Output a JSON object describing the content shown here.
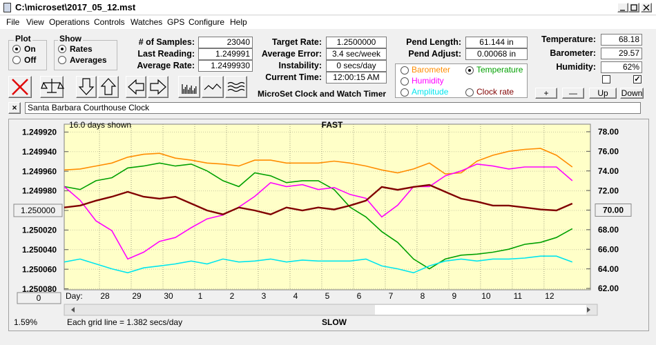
{
  "window": {
    "title": "C:\\microset\\2017_05_12.mst"
  },
  "menu": [
    "File",
    "View",
    "Operations",
    "Controls",
    "Watches",
    "GPS",
    "Configure",
    "Help"
  ],
  "plot_group": {
    "title": "Plot",
    "options": [
      "On",
      "Off"
    ],
    "selected": 0
  },
  "show_group": {
    "title": "Show",
    "options": [
      "Rates",
      "Averages"
    ],
    "selected": 0
  },
  "readouts": [
    [
      {
        "label": "# of Samples:",
        "value": "23040"
      },
      {
        "label": "Last Reading:",
        "value": "1.249991"
      },
      {
        "label": "Average Rate:",
        "value": "1.2499930"
      }
    ],
    [
      {
        "label": "Target Rate:",
        "value": "1.2500000"
      },
      {
        "label": "Average Error:",
        "value": "3.4 sec/week"
      },
      {
        "label": "Instability:",
        "value": "0 secs/day"
      },
      {
        "label": "Current Time:",
        "value": "12:00:15 AM"
      }
    ],
    [
      {
        "label": "Pend Length:",
        "value": "61.144 in"
      },
      {
        "label": "Pend Adjust:",
        "value": "0.00068 in"
      }
    ],
    [
      {
        "label": "Temperature:",
        "value": "68.18"
      },
      {
        "label": "Barometer:",
        "value": "29.57"
      },
      {
        "label": "Humidity:",
        "value": "62%"
      }
    ]
  ],
  "app_caption": "MicroSet Clock and Watch Timer",
  "buttons": [
    "+",
    "—",
    "Up",
    "Down"
  ],
  "checkboxes": [
    false,
    true
  ],
  "clock_name": "Santa Barbara Courthouse Clock",
  "chart_data": {
    "type": "line",
    "days_shown": "16.0 days shown",
    "top_label": "FAST",
    "bottom_label": "SLOW",
    "grid_note": "Each grid line = 1.382 secs/day",
    "x_axis_label": "Day:",
    "scroll_value": "0",
    "percent": "1.59%",
    "selected_series": 1,
    "button_ticks": {
      "y": 4,
      "y2": 4
    },
    "x": [
      0,
      0.5,
      1,
      1.5,
      2,
      2.5,
      3,
      3.5,
      4,
      4.5,
      5,
      5.5,
      6,
      6.5,
      7,
      7.5,
      8,
      8.5,
      9,
      9.5,
      10,
      10.5,
      11,
      11.5,
      12,
      12.5,
      13,
      13.5,
      14,
      14.5,
      15,
      15.5,
      16
    ],
    "xlim": [
      0,
      16.57
    ],
    "xticks": [
      {
        "value": 1.11,
        "label": "28"
      },
      {
        "value": 2.11,
        "label": "29"
      },
      {
        "value": 3.11,
        "label": "30"
      },
      {
        "value": 4.11,
        "label": "1"
      },
      {
        "value": 5.11,
        "label": "2"
      },
      {
        "value": 6.11,
        "label": "3"
      },
      {
        "value": 7.11,
        "label": "4"
      },
      {
        "value": 8.11,
        "label": "5"
      },
      {
        "value": 9.11,
        "label": "6"
      },
      {
        "value": 10.11,
        "label": "7"
      },
      {
        "value": 11.11,
        "label": "8"
      },
      {
        "value": 12.11,
        "label": "9"
      },
      {
        "value": 13.11,
        "label": "10"
      },
      {
        "value": 14.11,
        "label": "11"
      },
      {
        "value": 15.11,
        "label": "12"
      }
    ],
    "ylim": [
      1.250081,
      1.249912
    ],
    "yticks": [
      {
        "value": 1.24992,
        "label": "1.249920"
      },
      {
        "value": 1.24994,
        "label": "1.249940"
      },
      {
        "value": 1.24996,
        "label": "1.249960"
      },
      {
        "value": 1.24998,
        "label": "1.249980"
      },
      {
        "value": 1.25,
        "label": "1.250000"
      },
      {
        "value": 1.25002,
        "label": "1.250020"
      },
      {
        "value": 1.25004,
        "label": "1.250040"
      },
      {
        "value": 1.25006,
        "label": "1.250060"
      },
      {
        "value": 1.25008,
        "label": "1.250080"
      }
    ],
    "y2lim": [
      61.86,
      78.77
    ],
    "y2ticks": [
      {
        "value": 78,
        "label": "78.00"
      },
      {
        "value": 76,
        "label": "76.00"
      },
      {
        "value": 74,
        "label": "74.00"
      },
      {
        "value": 72,
        "label": "72.00"
      },
      {
        "value": 70,
        "label": "70.00"
      },
      {
        "value": 68,
        "label": "68.00"
      },
      {
        "value": 66,
        "label": "66.00"
      },
      {
        "value": 64,
        "label": "64.00"
      },
      {
        "value": 62,
        "label": "62.00"
      }
    ],
    "series": [
      {
        "name": "Barometer",
        "color": "#ff8c00",
        "axis": "y2",
        "values": [
          74.1,
          74.2,
          74.5,
          74.8,
          75.4,
          75.7,
          75.8,
          75.3,
          75.1,
          74.8,
          74.7,
          74.5,
          75.1,
          75.1,
          74.8,
          74.8,
          74.8,
          75.0,
          74.8,
          74.5,
          74.1,
          73.8,
          74.2,
          74.8,
          73.7,
          73.8,
          75.0,
          75.6,
          76.0,
          76.2,
          76.3,
          75.6,
          74.4
        ]
      },
      {
        "name": "Temperature",
        "color": "#00a000",
        "axis": "y2",
        "values": [
          72.4,
          72.1,
          73.0,
          73.3,
          74.3,
          74.5,
          74.8,
          74.5,
          74.7,
          74.0,
          73.0,
          72.4,
          73.8,
          73.5,
          72.8,
          73.0,
          73.0,
          72.1,
          70.3,
          69.3,
          67.8,
          66.7,
          65.0,
          64.0,
          65.0,
          65.4,
          65.5,
          65.7,
          66.0,
          66.5,
          66.7,
          67.2,
          68.1
        ]
      },
      {
        "name": "Humidity",
        "color": "#ff00ff",
        "axis": "y2",
        "values": [
          72.4,
          71.0,
          68.9,
          67.9,
          65.0,
          65.7,
          66.8,
          67.2,
          68.2,
          69.1,
          69.5,
          70.3,
          71.4,
          72.8,
          72.4,
          72.6,
          72.1,
          72.3,
          71.6,
          71.2,
          69.3,
          70.5,
          72.4,
          72.4,
          73.5,
          74.0,
          74.7,
          74.5,
          74.2,
          74.4,
          74.4,
          74.4,
          73.0
        ]
      },
      {
        "name": "Amplitude",
        "color": "#00e5ee",
        "axis": "y2",
        "values": [
          64.7,
          65.0,
          64.5,
          64.0,
          63.6,
          64.1,
          64.3,
          64.5,
          64.8,
          64.5,
          65.0,
          64.7,
          64.8,
          65.0,
          64.7,
          64.9,
          64.8,
          64.8,
          64.8,
          65.0,
          64.3,
          64.0,
          63.6,
          64.3,
          64.8,
          65.0,
          64.8,
          65.0,
          65.0,
          65.1,
          65.3,
          65.3,
          64.7
        ]
      },
      {
        "name": "Clock rate",
        "color": "#800000",
        "axis": "y",
        "values": [
          1.249997,
          1.249995,
          1.24999,
          1.249986,
          1.249981,
          1.249986,
          1.249988,
          1.249986,
          1.249993,
          1.25,
          1.250004,
          1.249997,
          1.25,
          1.250004,
          1.249997,
          1.25,
          1.249997,
          1.249999,
          1.249995,
          1.24999,
          1.249976,
          1.249979,
          1.249976,
          1.249974,
          1.249981,
          1.249988,
          1.249991,
          1.249995,
          1.249995,
          1.249997,
          1.249999,
          1.25,
          1.249993
        ]
      }
    ]
  }
}
